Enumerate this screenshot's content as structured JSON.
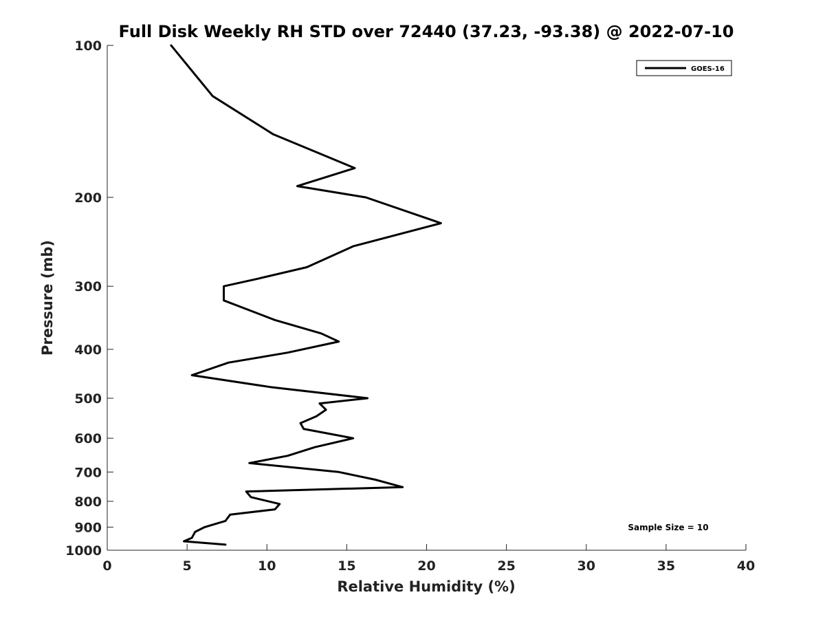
{
  "chart_data": {
    "type": "line",
    "title": "Full Disk Weekly RH STD over 72440 (37.23, -93.38) @ 2022-07-10",
    "xlabel": "Relative Humidity (%)",
    "ylabel": "Pressure (mb)",
    "xlim": [
      0,
      40
    ],
    "ylim": [
      100,
      1000
    ],
    "y_scale": "log",
    "y_reversed": true,
    "grid": false,
    "legend_position": "top-right",
    "x_ticks": [
      0,
      5,
      10,
      15,
      20,
      25,
      30,
      35,
      40
    ],
    "y_ticks": [
      100,
      200,
      300,
      400,
      500,
      600,
      700,
      800,
      900,
      1000
    ],
    "annotation": "Sample Size = 10",
    "series": [
      {
        "name": "GOES-16",
        "color": "#000000",
        "points": [
          [
            4.0,
            100
          ],
          [
            6.6,
            126
          ],
          [
            10.4,
            150
          ],
          [
            15.5,
            175
          ],
          [
            11.9,
            190
          ],
          [
            16.2,
            200
          ],
          [
            20.9,
            225
          ],
          [
            15.4,
            250
          ],
          [
            12.5,
            275
          ],
          [
            9.4,
            290
          ],
          [
            7.3,
            300
          ],
          [
            7.3,
            320
          ],
          [
            10.5,
            350
          ],
          [
            13.4,
            372
          ],
          [
            14.5,
            386
          ],
          [
            11.3,
            406
          ],
          [
            7.6,
            425
          ],
          [
            5.3,
            450
          ],
          [
            10.2,
            475
          ],
          [
            16.3,
            500
          ],
          [
            13.3,
            512
          ],
          [
            13.7,
            527
          ],
          [
            13.1,
            543
          ],
          [
            12.1,
            560
          ],
          [
            12.3,
            575
          ],
          [
            15.4,
            600
          ],
          [
            13.0,
            625
          ],
          [
            11.3,
            650
          ],
          [
            8.9,
            672
          ],
          [
            14.5,
            700
          ],
          [
            16.8,
            725
          ],
          [
            18.5,
            750
          ],
          [
            8.7,
            765
          ],
          [
            9.0,
            785
          ],
          [
            10.8,
            810
          ],
          [
            10.5,
            830
          ],
          [
            7.7,
            850
          ],
          [
            7.4,
            875
          ],
          [
            6.1,
            900
          ],
          [
            5.5,
            920
          ],
          [
            5.3,
            945
          ],
          [
            4.8,
            960
          ],
          [
            7.4,
            975
          ]
        ]
      }
    ]
  }
}
